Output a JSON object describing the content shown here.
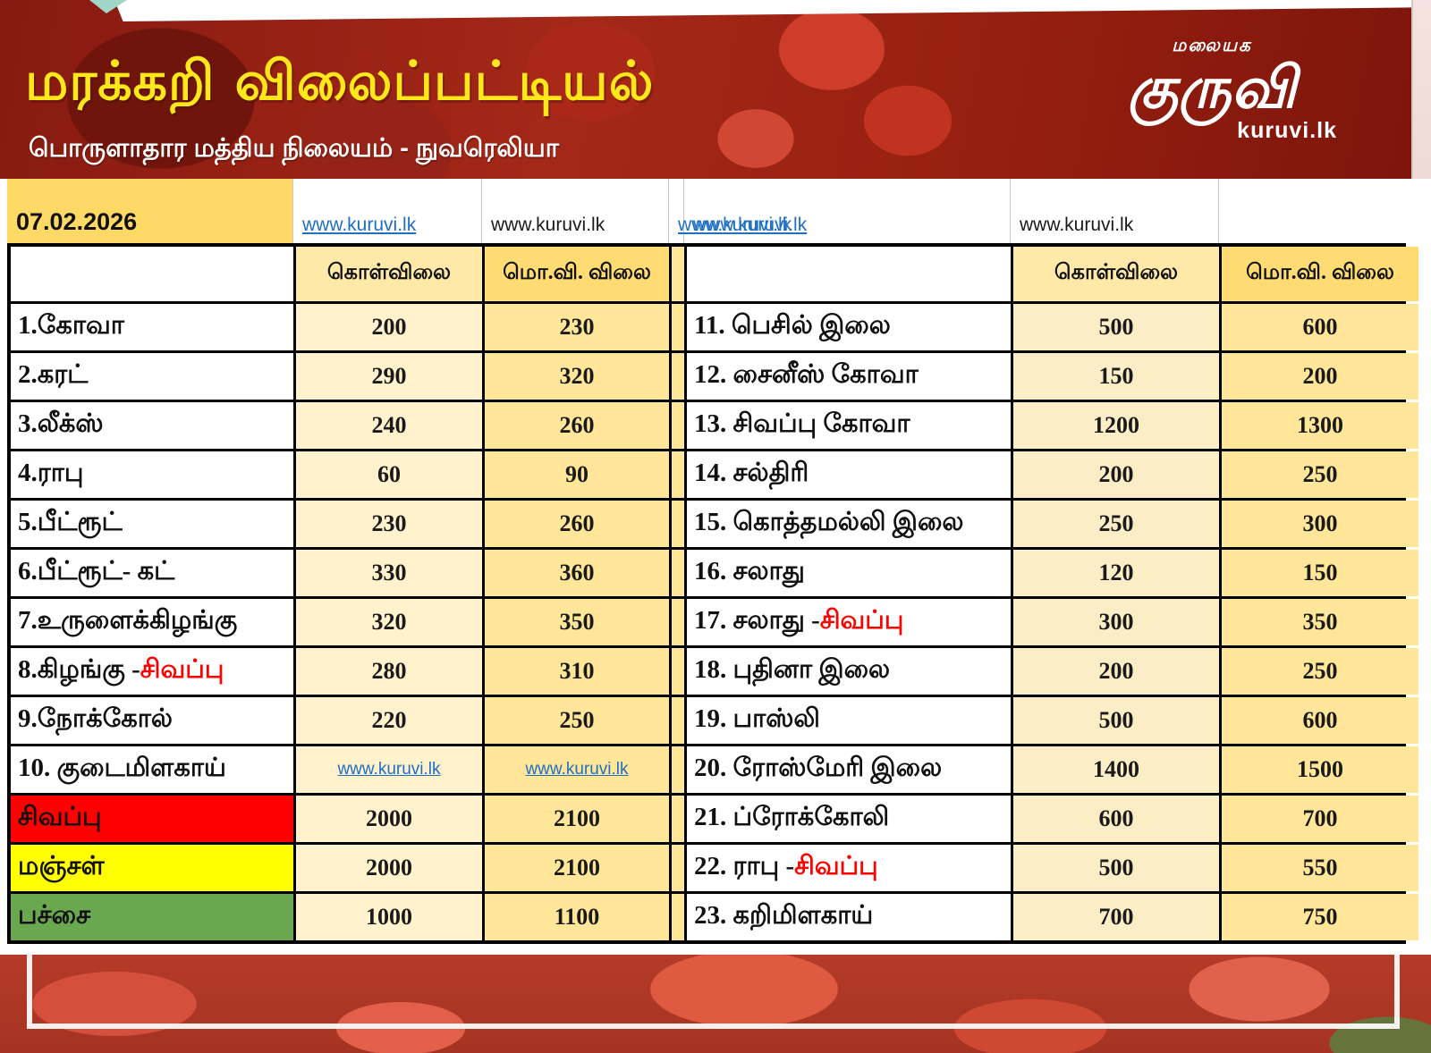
{
  "header": {
    "title": "மரக்கறி விலைப்பட்டியல்",
    "subtitle": "பொருளாதார மத்திய நிலையம் - நுவரெலியா",
    "logo_top": "மலையக",
    "logo_main": "குருவி",
    "logo_site": "kuruvi.lk"
  },
  "date_row": {
    "date": "07.02.2026",
    "links": [
      {
        "text": "www.kuruvi.lk",
        "style": "link"
      },
      {
        "text": "www.kuruvi.lk",
        "style": "plain"
      },
      {
        "text": "www.kuruvi.lk",
        "style": "link"
      },
      {
        "text": "www.kuruvi.lk",
        "style": "link"
      },
      {
        "text": "www.kuruvi.lk",
        "style": "plain"
      }
    ]
  },
  "table": {
    "col_buy": "கொள்விலை",
    "col_wholesale": "மொ.வி. விலை",
    "left_rows": [
      {
        "name": "1.கோவா",
        "buy": "200",
        "wholesale": "230"
      },
      {
        "name": "2.கரட்",
        "buy": "290",
        "wholesale": "320"
      },
      {
        "name": "3.லீக்ஸ்",
        "buy": "240",
        "wholesale": "260"
      },
      {
        "name": "4.ராபு",
        "buy": "60",
        "wholesale": "90"
      },
      {
        "name": "5.பீட்ரூட்",
        "buy": "230",
        "wholesale": "260"
      },
      {
        "name": "6.பீட்ரூட்- கட்",
        "buy": "330",
        "wholesale": "360"
      },
      {
        "name": "7.உருளைக்கிழங்கு",
        "buy": "320",
        "wholesale": "350"
      },
      {
        "name": "8.கிழங்கு - ",
        "accent": "சிவப்பு",
        "buy": "280",
        "wholesale": "310"
      },
      {
        "name": "9.நோக்கோல்",
        "buy": "220",
        "wholesale": "250"
      },
      {
        "name": "10. குடைமிளகாய்",
        "buy_link": "www.kuruvi.lk",
        "wholesale_link": "www.kuruvi.lk"
      },
      {
        "name": "சிவப்பு",
        "bg": "#fe0000",
        "buy": "2000",
        "wholesale": "2100"
      },
      {
        "name": "மஞ்சள்",
        "bg": "#ffff00",
        "buy": "2000",
        "wholesale": "2100"
      },
      {
        "name": "பச்சை",
        "bg": "#6aa84f",
        "buy": "1000",
        "wholesale": "1100"
      }
    ],
    "right_rows": [
      {
        "name": "11. பெசில் இலை",
        "buy": "500",
        "wholesale": "600"
      },
      {
        "name": "12. சைனீஸ் கோவா",
        "buy": "150",
        "wholesale": "200"
      },
      {
        "name": "13. சிவப்பு கோவா",
        "buy": "1200",
        "wholesale": "1300"
      },
      {
        "name": "14. சல்திரி",
        "buy": "200",
        "wholesale": "250"
      },
      {
        "name": "15. கொத்தமல்லி இலை",
        "buy": "250",
        "wholesale": "300"
      },
      {
        "name": "16. சலாது",
        "buy": "120",
        "wholesale": "150"
      },
      {
        "name": "17. சலாது - ",
        "accent": "சிவப்பு",
        "buy": "300",
        "wholesale": "350"
      },
      {
        "name": "18. புதினா இலை",
        "buy": "200",
        "wholesale": "250"
      },
      {
        "name": "19. பாஸ்லி",
        "buy": "500",
        "wholesale": "600"
      },
      {
        "name": "20. ரோஸ்மேரி இலை",
        "buy": "1400",
        "wholesale": "1500"
      },
      {
        "name": "21. ப்ரோக்கோலி",
        "buy": "600",
        "wholesale": "700"
      },
      {
        "name": "22. ராபு - ",
        "accent": "சிவப்பு",
        "buy": "500",
        "wholesale": "550"
      },
      {
        "name": "23. கறிமிளகாய்",
        "buy": "700",
        "wholesale": "750"
      }
    ]
  },
  "colors": {
    "accent_red": "#ff0000",
    "link_blue": "#1f6fc4",
    "date_cell": "#ffd966",
    "buy_column": "#fff2cc",
    "wholesale_column": "#ffe699",
    "row_red": "#fe0000",
    "row_yellow": "#ffff00",
    "row_green": "#6aa84f"
  }
}
